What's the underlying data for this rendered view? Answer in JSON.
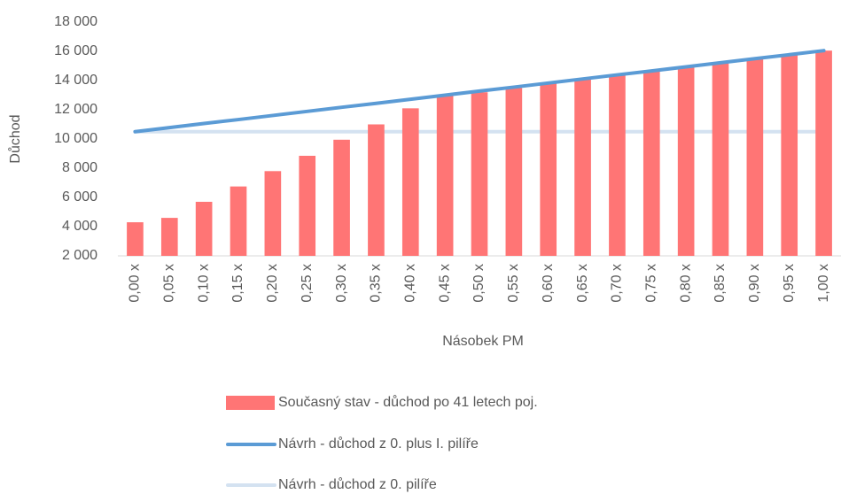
{
  "chart_data": {
    "type": "bar_line",
    "x_label": "Násobek PM",
    "y_label": "Důchod",
    "categories": [
      "0,00 x",
      "0,05 x",
      "0,10 x",
      "0,15 x",
      "0,20 x",
      "0,25 x",
      "0,30 x",
      "0,35 x",
      "0,40 x",
      "0,45 x",
      "0,50 x",
      "0,55 x",
      "0,60 x",
      "0,65 x",
      "0,70 x",
      "0,75 x",
      "0,80 x",
      "0,85 x",
      "0,90 x",
      "0,95 x",
      "1,00 x"
    ],
    "series": [
      {
        "name": "Současný stav - důchod po 41 letech poj.",
        "type": "bar",
        "color": "#ff7575",
        "values": [
          4300,
          4600,
          5700,
          6750,
          7800,
          8850,
          9950,
          11000,
          12100,
          13000,
          13200,
          13500,
          13800,
          14100,
          14400,
          14650,
          14900,
          15200,
          15500,
          15750,
          16050
        ]
      },
      {
        "name": "Návrh - důchod z 0. plus I. pilíře",
        "type": "line",
        "color": "#5b9bd5",
        "values": [
          10500,
          10780,
          11060,
          11330,
          11610,
          11890,
          12170,
          12440,
          12720,
          13000,
          13280,
          13550,
          13830,
          14110,
          14390,
          14660,
          14940,
          15220,
          15500,
          15770,
          16050
        ]
      },
      {
        "name": "Návrh - důchod z 0. pilíře",
        "type": "line",
        "color": "#d4e2f1",
        "values": [
          10500,
          10500,
          10500,
          10500,
          10500,
          10500,
          10500,
          10500,
          10500,
          10500,
          10500,
          10500,
          10500,
          10500,
          10500,
          10500,
          10500,
          10500,
          10500,
          10500,
          10500
        ]
      }
    ],
    "ylim": [
      2000,
      18000
    ],
    "yticks": [
      {
        "value": 2000,
        "label": "2 000"
      },
      {
        "value": 4000,
        "label": "4 000"
      },
      {
        "value": 6000,
        "label": "6 000"
      },
      {
        "value": 8000,
        "label": "8 000"
      },
      {
        "value": 10000,
        "label": "10 000"
      },
      {
        "value": 12000,
        "label": "12 000"
      },
      {
        "value": 14000,
        "label": "14 000"
      },
      {
        "value": 16000,
        "label": "16 000"
      },
      {
        "value": 18000,
        "label": "18 000"
      }
    ],
    "grid": false,
    "legend": "bottom"
  }
}
